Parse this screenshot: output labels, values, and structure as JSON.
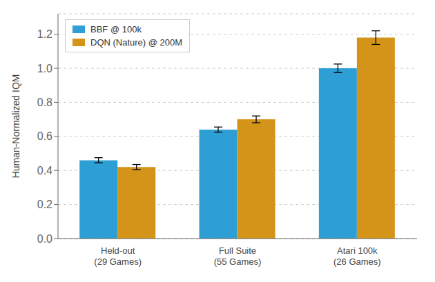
{
  "chart_data": {
    "type": "bar",
    "categories": [
      "Held-out\n(29 Games)",
      "Full Suite\n(55 Games)",
      "Atari 100k\n(26 Games)"
    ],
    "series": [
      {
        "name": "BBF @ 100k",
        "color": "#2E9FD4",
        "values": [
          0.46,
          0.64,
          1.0
        ],
        "errors": [
          0.015,
          0.015,
          0.025
        ]
      },
      {
        "name": "DQN (Nature) @ 200M",
        "color": "#D4941A",
        "values": [
          0.42,
          0.7,
          1.18
        ],
        "errors": [
          0.015,
          0.02,
          0.04
        ]
      }
    ],
    "ylabel": "Human-Normalized IQM",
    "ylim": [
      0,
      1.32
    ],
    "yticks": [
      {
        "value": 0,
        "label": "0.0"
      },
      0.2,
      0.4,
      0.6,
      0.8,
      {
        "value": 1,
        "label": "1.0"
      },
      1.2
    ],
    "grid": true,
    "legend": "upper left"
  }
}
